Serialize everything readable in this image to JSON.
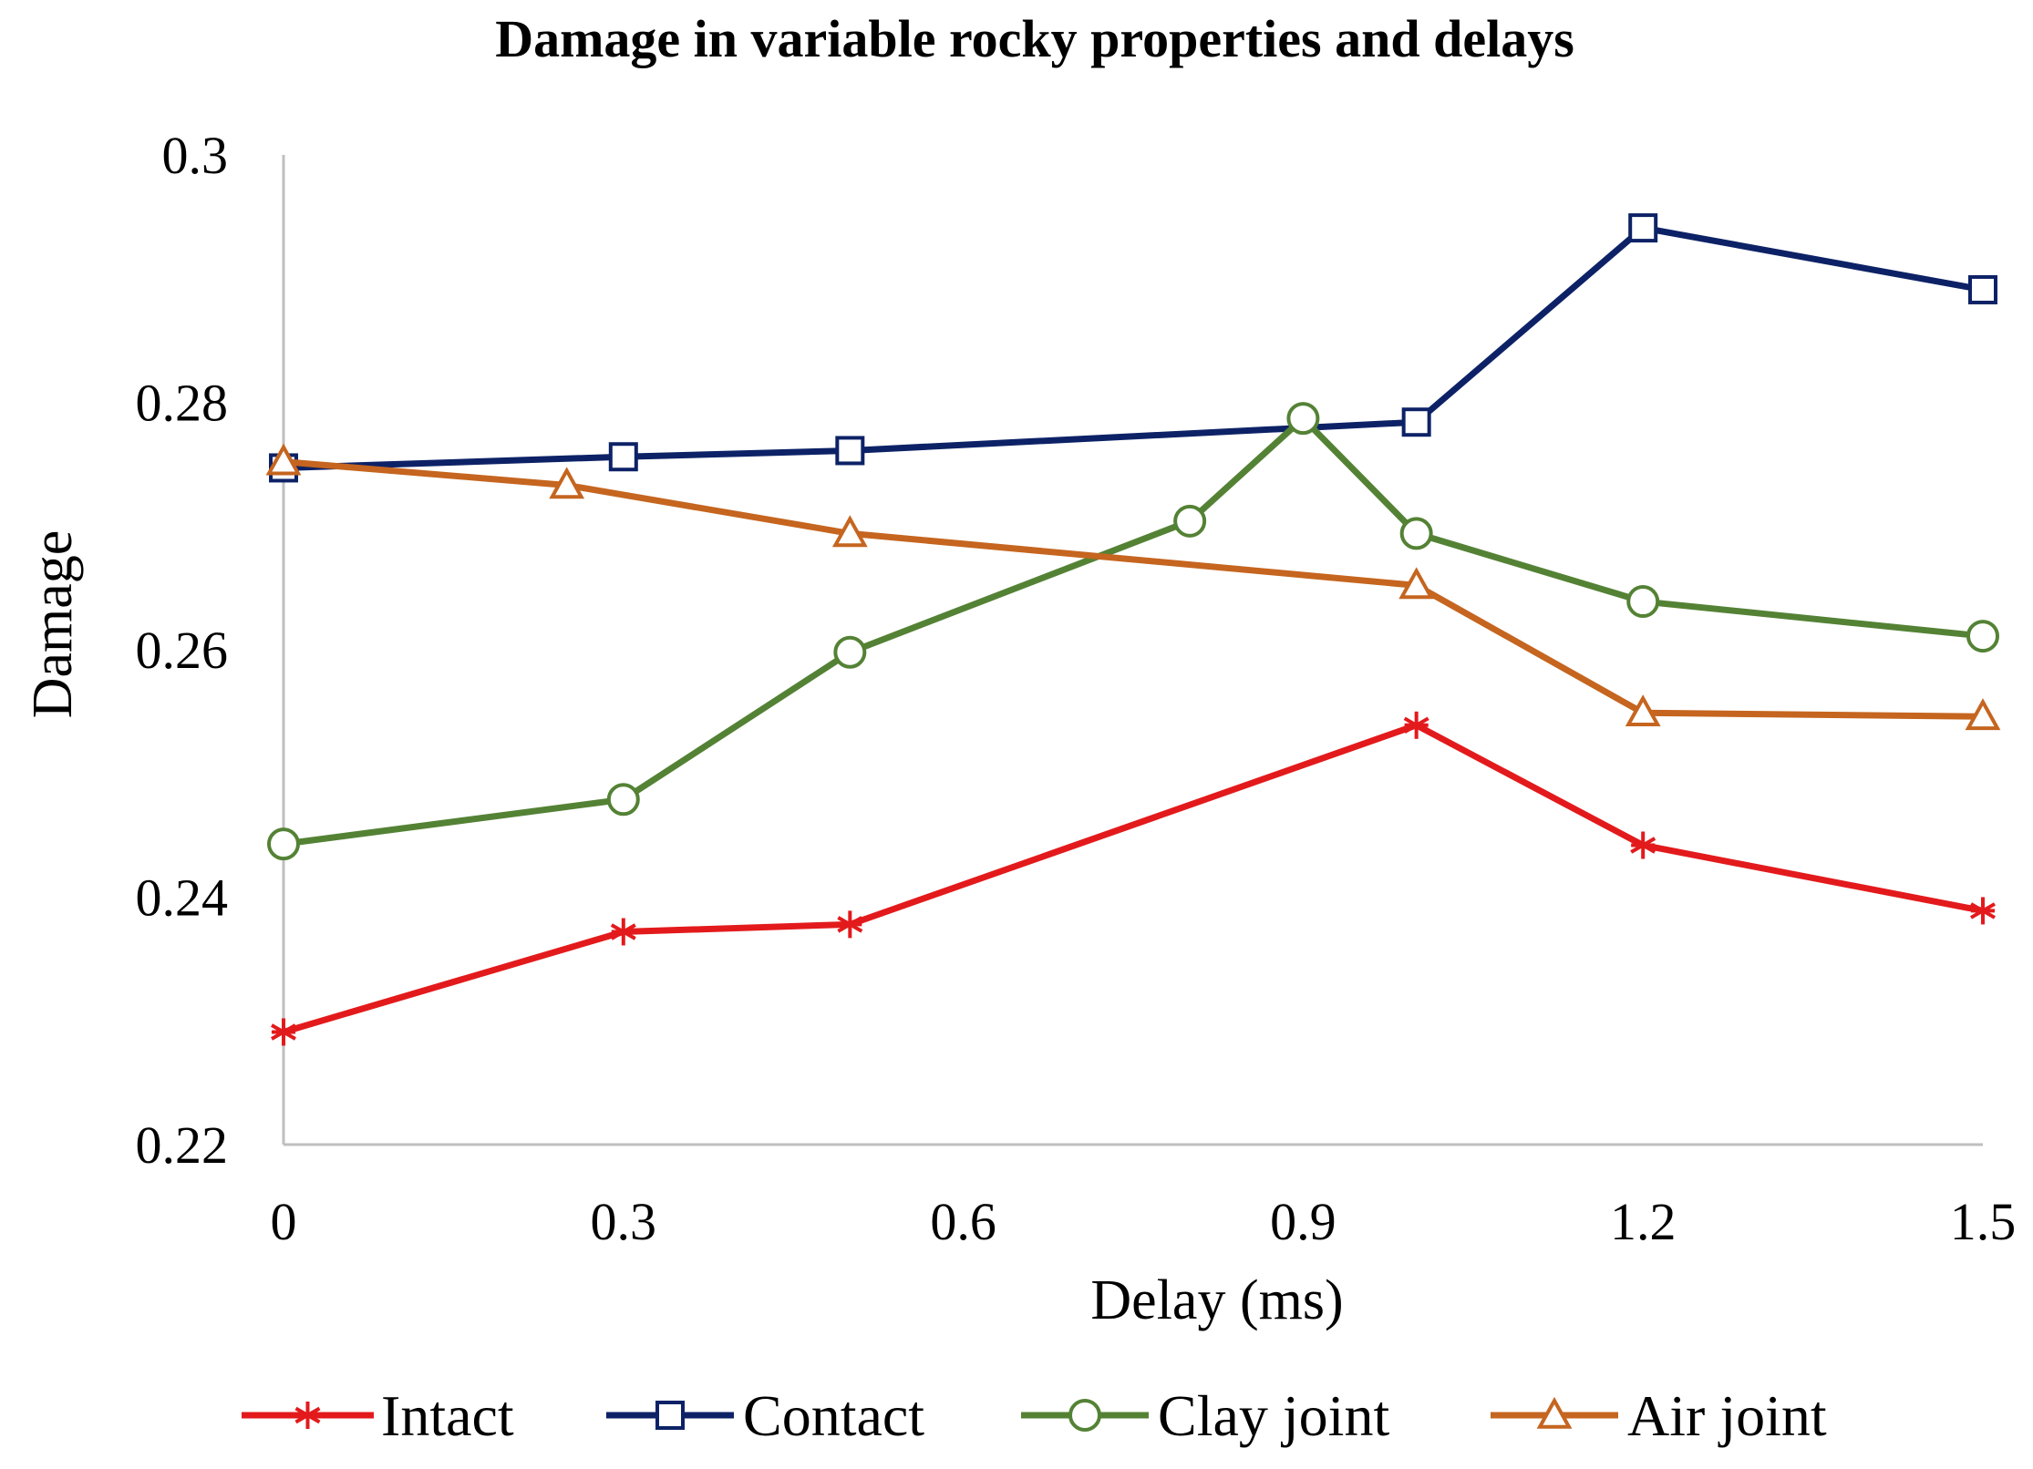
{
  "chart_data": {
    "type": "line",
    "title": "Damage in variable rocky properties and delays",
    "xlabel": "Delay (ms)",
    "ylabel": "Damage",
    "xlim": [
      0,
      1.5
    ],
    "ylim": [
      0.22,
      0.3
    ],
    "x_ticks": [
      "0",
      "0.3",
      "0.6",
      "0.9",
      "1.2",
      "1.5"
    ],
    "y_ticks": [
      "0.22",
      "0.24",
      "0.26",
      "0.28",
      "0.3"
    ],
    "grid": false,
    "legend_position": "bottom",
    "series": [
      {
        "name": "Intact",
        "color": "#e31a1c",
        "marker": "asterisk",
        "x": [
          0,
          0.3,
          0.5,
          1.0,
          1.2,
          1.5
        ],
        "y": [
          0.2291,
          0.2372,
          0.2378,
          0.2539,
          0.2442,
          0.2389
        ]
      },
      {
        "name": "Contact",
        "color": "#0d2266",
        "marker": "square",
        "x": [
          0,
          0.3,
          0.5,
          1.0,
          1.2,
          1.5
        ],
        "y": [
          0.2747,
          0.2756,
          0.2761,
          0.2784,
          0.2941,
          0.2891
        ]
      },
      {
        "name": "Clay joint",
        "color": "#548235",
        "marker": "circle",
        "x": [
          0,
          0.3,
          0.5,
          0.8,
          0.9,
          1.0,
          1.2,
          1.5
        ],
        "y": [
          0.2443,
          0.2479,
          0.2598,
          0.2704,
          0.2787,
          0.2694,
          0.2639,
          0.2611
        ]
      },
      {
        "name": "Air joint",
        "color": "#c5651f",
        "marker": "triangle",
        "x": [
          0,
          0.25,
          0.5,
          1.0,
          1.2,
          1.5
        ],
        "y": [
          0.2752,
          0.2733,
          0.2694,
          0.2652,
          0.2549,
          0.2546
        ]
      }
    ]
  }
}
